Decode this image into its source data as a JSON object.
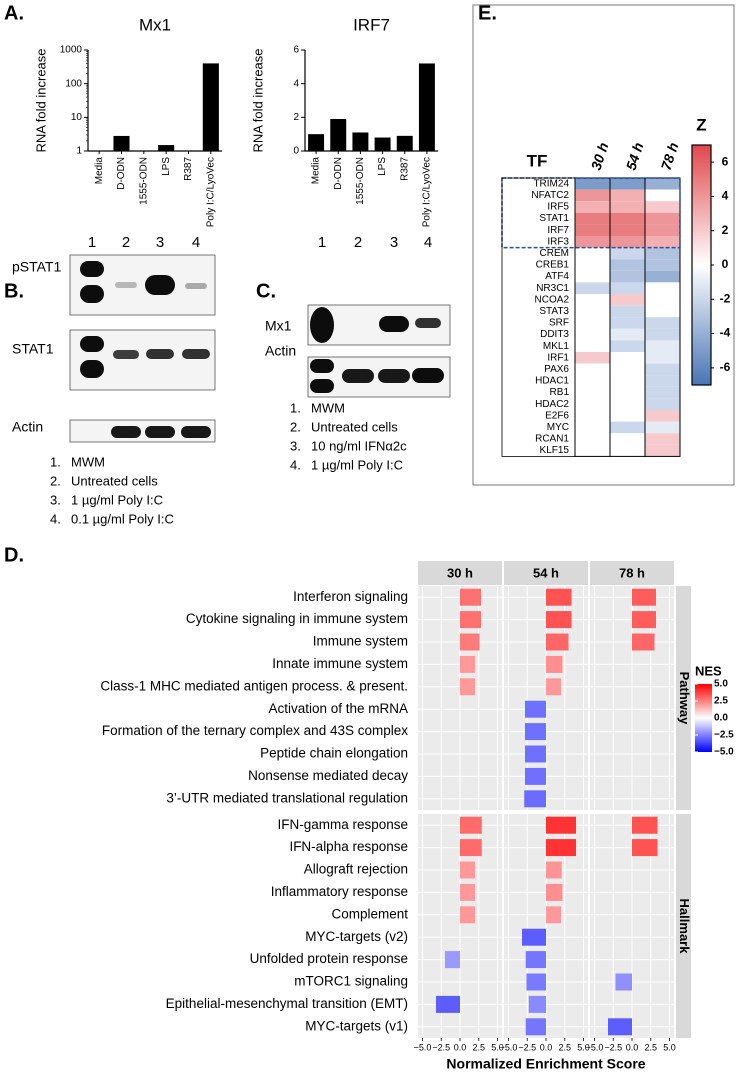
{
  "panels": {
    "A": "A.",
    "B": "B.",
    "C": "C.",
    "D": "D.",
    "E": "E."
  },
  "chart_data": [
    {
      "type": "bar",
      "title": "Mx1",
      "ylabel": "RNA fold increase",
      "categories": [
        "Media",
        "D-ODN",
        "1555-ODN",
        "LPS",
        "R387",
        "Poly I:C/LyoVec"
      ],
      "values": [
        1,
        2.8,
        1,
        1.5,
        1,
        400
      ],
      "color": "#000000",
      "log_scale": true,
      "ylim": [
        1,
        1000
      ],
      "yticks": [
        1,
        10,
        100,
        1000
      ]
    },
    {
      "type": "bar",
      "title": "IRF7",
      "ylabel": "RNA fold increase",
      "categories": [
        "Media",
        "D-ODN",
        "1555-ODN",
        "LPS",
        "R387",
        "Poly I:C/LyoVec"
      ],
      "values": [
        1.0,
        1.9,
        1.1,
        0.8,
        0.9,
        5.2
      ],
      "color": "#000000",
      "log_scale": false,
      "ylim": [
        0,
        6
      ],
      "yticks": [
        0,
        2,
        4,
        6
      ]
    },
    {
      "type": "heatmap",
      "title": "TF",
      "columns": [
        "30 h",
        "54 h",
        "78 h"
      ],
      "rows": [
        "TRIM24",
        "NFATC2",
        "IRF5",
        "STAT1",
        "IRF7",
        "IRF3",
        "CREM",
        "CREB1",
        "ATF4",
        "NR3C1",
        "NCOA2",
        "STAT3",
        "SRF",
        "DDIT3",
        "MKL1",
        "IRF1",
        "PAX6",
        "HDAC1",
        "RB1",
        "HDAC2",
        "E2F6",
        "MYC",
        "RCAN1",
        "KLF15"
      ],
      "values": [
        [
          -5,
          -5,
          -4
        ],
        [
          4,
          3,
          0
        ],
        [
          3,
          3,
          2
        ],
        [
          5,
          5,
          4
        ],
        [
          5,
          5,
          4
        ],
        [
          4,
          4,
          3
        ],
        [
          0,
          -2,
          -3
        ],
        [
          0,
          -3,
          -3
        ],
        [
          0,
          -3,
          -4
        ],
        [
          -2,
          -2,
          0
        ],
        [
          0,
          2,
          0
        ],
        [
          0,
          -2,
          0
        ],
        [
          0,
          -2,
          -2
        ],
        [
          0,
          -1,
          -2
        ],
        [
          0,
          -2,
          -1
        ],
        [
          2,
          0,
          -1
        ],
        [
          0,
          0,
          -2
        ],
        [
          0,
          0,
          -2
        ],
        [
          0,
          0,
          -2
        ],
        [
          0,
          0,
          -2
        ],
        [
          0,
          0,
          2
        ],
        [
          0,
          -2,
          -1
        ],
        [
          0,
          0,
          2
        ],
        [
          0,
          0,
          2
        ]
      ],
      "colorbar_title": "Z",
      "zlim": [
        -7,
        7
      ],
      "zticks": [
        6,
        4,
        2,
        0,
        -2,
        -4,
        -6
      ],
      "colors": {
        "low": "#4a74b4",
        "mid": "#ffffff",
        "high": "#e0474c"
      }
    },
    {
      "type": "faceted_bar",
      "facets": [
        "30 h",
        "54 h",
        "78 h"
      ],
      "groups": [
        {
          "name": "Pathway",
          "categories": [
            "Interferon signaling",
            "Cytokine signaling in immune system",
            "Immune system",
            "Innate immune system",
            "Class-1 MHC mediated antigen process. & present.",
            "Activation of the mRNA",
            "Formation of the ternary complex and 43S complex",
            "Peptide chain elongation",
            "Nonsense mediated decay",
            "3’-UTR mediated translational regulation"
          ],
          "values": [
            [
              2.8,
              3.4,
              3.2
            ],
            [
              2.8,
              3.4,
              3.2
            ],
            [
              2.6,
              3.0,
              3.0
            ],
            [
              2.0,
              2.2,
              null
            ],
            [
              2.0,
              2.0,
              null
            ],
            [
              null,
              -2.8,
              null
            ],
            [
              null,
              -2.8,
              null
            ],
            [
              null,
              -2.8,
              null
            ],
            [
              null,
              -2.8,
              null
            ],
            [
              null,
              -2.9,
              null
            ]
          ]
        },
        {
          "name": "Hallmark",
          "categories": [
            "IFN-gamma response",
            "IFN-alpha response",
            "Allograft rejection",
            "Inflammatory response",
            "Complement",
            "MYC-targets (v2)",
            "Unfolded protein response",
            "mTORC1 signaling",
            "Epithelial-mesenchymal transition (EMT)",
            "MYC-targets (v1)"
          ],
          "values": [
            [
              2.9,
              4.0,
              3.4
            ],
            [
              2.9,
              4.0,
              3.4
            ],
            [
              2.0,
              2.1,
              null
            ],
            [
              2.0,
              2.2,
              null
            ],
            [
              2.0,
              2.0,
              null
            ],
            [
              null,
              -3.2,
              null
            ],
            [
              -2.0,
              -2.7,
              null
            ],
            [
              null,
              -2.6,
              -2.2
            ],
            [
              -3.2,
              -2.3,
              null
            ],
            [
              null,
              -2.7,
              -3.2
            ]
          ]
        }
      ],
      "xlabel": "Normalized Enrichment Score",
      "xlim": [
        -5.6,
        5.6
      ],
      "xticks": [
        {
          "value": -5,
          "label": "−5.0"
        },
        {
          "value": -2.5,
          "label": "−2.5"
        },
        {
          "value": 0,
          "label": "0.0"
        },
        {
          "value": 2.5,
          "label": "2.5"
        },
        {
          "value": 5,
          "label": "5.0"
        }
      ],
      "legend_title": "NES",
      "legend_ticks": [
        {
          "value": 5,
          "label": "5.0"
        },
        {
          "value": 2.5,
          "label": "2.5"
        },
        {
          "value": 0,
          "label": "0.0"
        },
        {
          "value": -2.5,
          "label": "−2.5"
        },
        {
          "value": -5,
          "label": "−5.0"
        }
      ],
      "colors": {
        "low": "#0000ff",
        "mid": "#ffffff",
        "high": "#ff0000"
      },
      "panel_color": "#ebebeb",
      "strip_color": "#d9d9d9"
    }
  ],
  "blots": {
    "B": {
      "lanes": [
        "1",
        "2",
        "3",
        "4"
      ],
      "rows": [
        "pSTAT1",
        "STAT1",
        "Actin"
      ],
      "legend_numbers": [
        "1.",
        "2.",
        "3.",
        "4."
      ],
      "legend": [
        "MWM",
        "Untreated cells",
        "1 µg/ml Poly I:C",
        "0.1 µg/ml Poly I:C"
      ]
    },
    "C": {
      "lanes": [
        "1",
        "2",
        "3",
        "4"
      ],
      "rows": [
        "Mx1",
        "Actin"
      ],
      "legend_numbers": [
        "1.",
        "2.",
        "3.",
        "4."
      ],
      "legend": [
        "MWM",
        "Untreated cells",
        "10 ng/ml IFNα2c",
        "1 µg/ml Poly I:C"
      ]
    }
  }
}
